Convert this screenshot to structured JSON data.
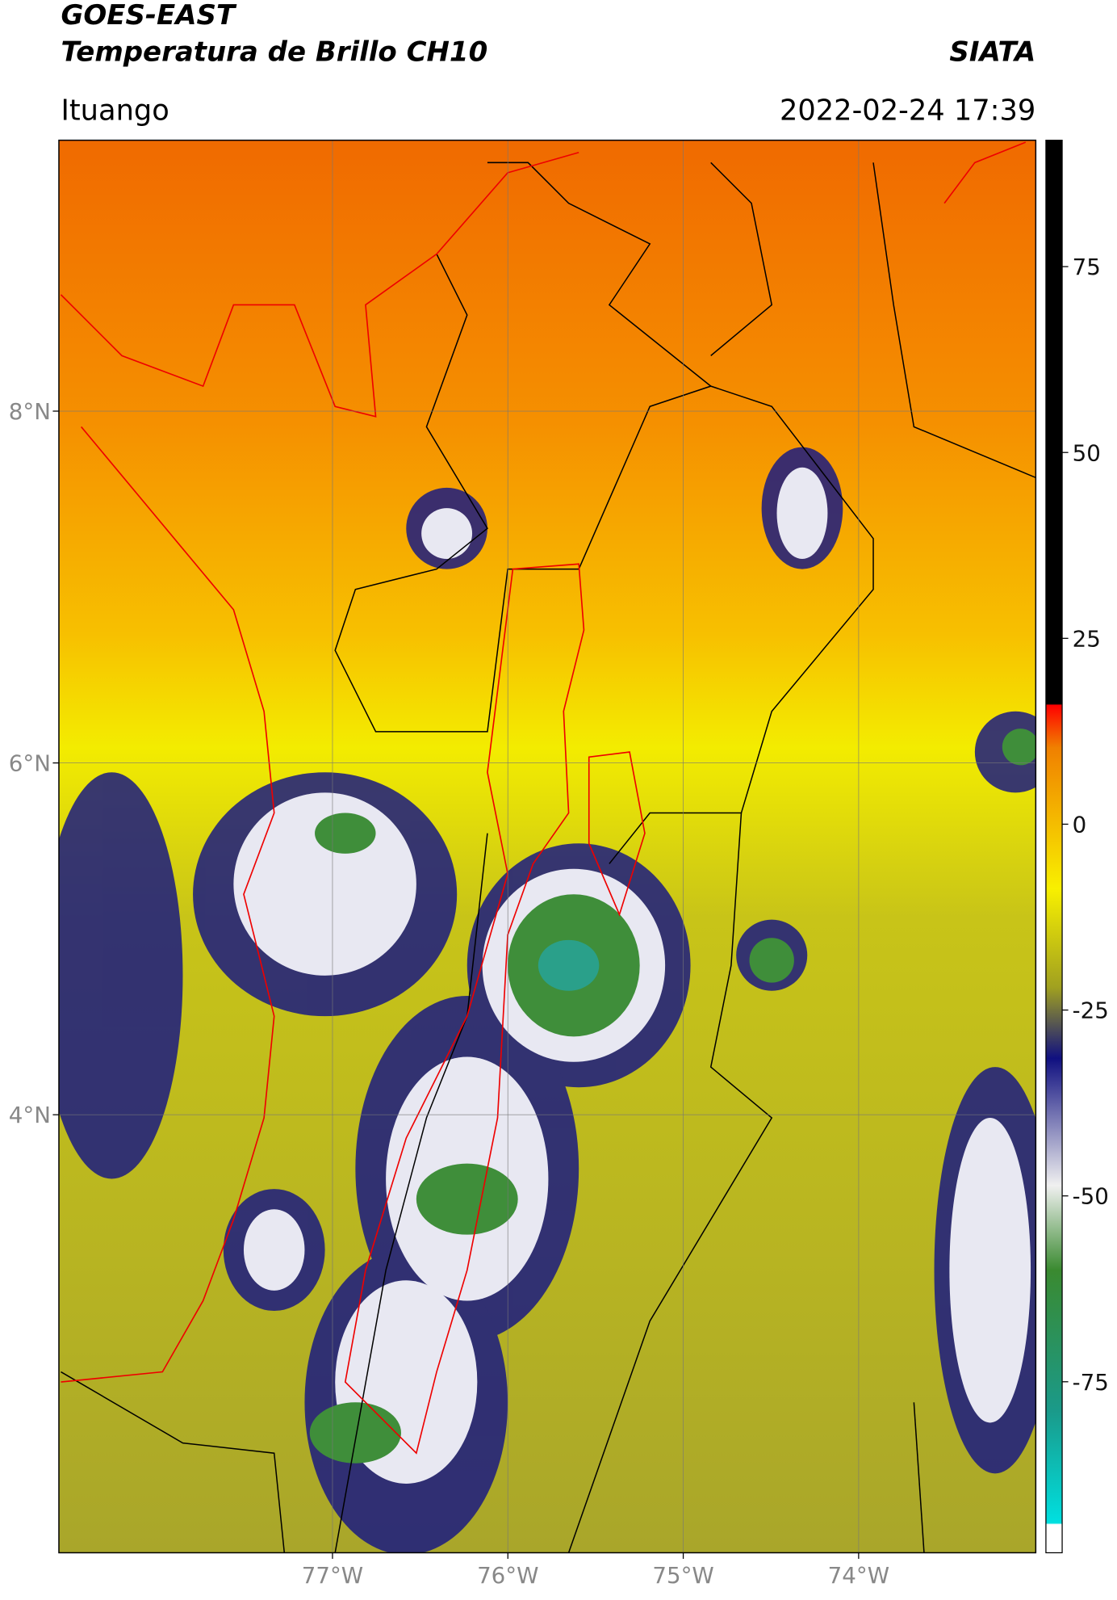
{
  "header": {
    "title_line1": "GOES-EAST",
    "title_line2": "Temperatura de Brillo CH10",
    "source": "SIATA",
    "location": "Ituango",
    "datetime": "2022-02-24 17:39"
  },
  "map": {
    "lonlim": [
      -78.56,
      -72.99
    ],
    "latlim": [
      1.51,
      9.54
    ],
    "lonticks": [
      {
        "value": -77,
        "label": "77°W"
      },
      {
        "value": -76,
        "label": "76°W"
      },
      {
        "value": -75,
        "label": "75°W"
      },
      {
        "value": -74,
        "label": "74°W"
      }
    ],
    "latticks": [
      {
        "value": 8,
        "label": "8°N"
      },
      {
        "value": 6,
        "label": "6°N"
      },
      {
        "value": 4,
        "label": "4°N"
      }
    ],
    "grid": true
  },
  "colorbar": {
    "lim": [
      -98,
      92
    ],
    "ticks": [
      75,
      50,
      25,
      0,
      -25,
      -50,
      -75
    ]
  }
}
